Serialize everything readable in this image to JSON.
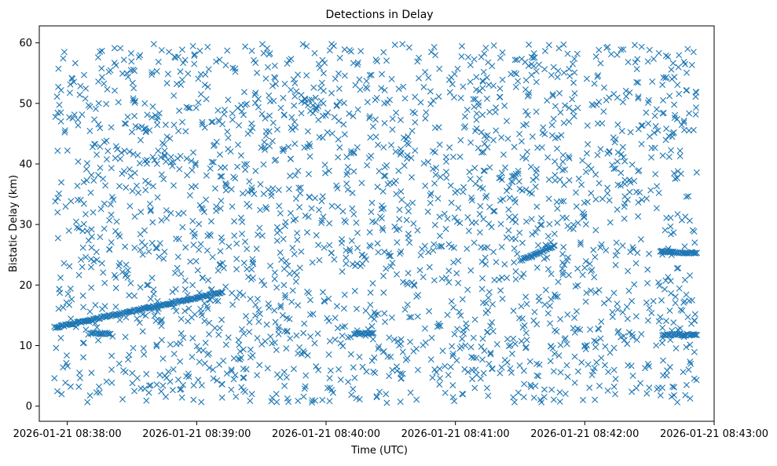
{
  "chart_data": {
    "type": "scatter",
    "title": "Detections in Delay",
    "xlabel": "Time (UTC)",
    "ylabel": "Bistatic Delay (km)",
    "marker": "x",
    "color": "#1f77b4",
    "grid": false,
    "legend": "none",
    "x_unit": "UTC time",
    "xlim": [
      "2026-01-21 08:37:47",
      "2026-01-21 08:43:00"
    ],
    "ylim": [
      -2.5,
      62.8
    ],
    "x_ticks": [
      "2026-01-21 08:38:00",
      "2026-01-21 08:39:00",
      "2026-01-21 08:40:00",
      "2026-01-21 08:41:00",
      "2026-01-21 08:42:00",
      "2026-01-21 08:43:00"
    ],
    "y_ticks": [
      0,
      10,
      20,
      30,
      40,
      50,
      60
    ],
    "x_range": [
      "2026-01-21 08:37:54",
      "2026-01-21 08:42:52"
    ],
    "y_range": [
      0.5,
      59.8
    ],
    "approx_point_count": 2500,
    "tracks": [
      {
        "start": "2026-01-21 08:37:54",
        "end": "2026-01-21 08:39:12",
        "delay_start": 13.0,
        "delay_end": 18.8
      },
      {
        "start": "2026-01-21 08:38:11",
        "end": "2026-01-21 08:38:20",
        "delay_start": 12.0,
        "delay_end": 12.0
      },
      {
        "start": "2026-01-21 08:40:13",
        "end": "2026-01-21 08:40:22",
        "delay_start": 12.0,
        "delay_end": 12.0
      },
      {
        "start": "2026-01-21 08:41:30",
        "end": "2026-01-21 08:41:46",
        "delay_start": 24.0,
        "delay_end": 26.5
      },
      {
        "start": "2026-01-21 08:42:36",
        "end": "2026-01-21 08:42:52",
        "delay_start": 11.8,
        "delay_end": 11.8
      },
      {
        "start": "2026-01-21 08:42:35",
        "end": "2026-01-21 08:42:52",
        "delay_start": 25.5,
        "delay_end": 25.3
      }
    ]
  }
}
